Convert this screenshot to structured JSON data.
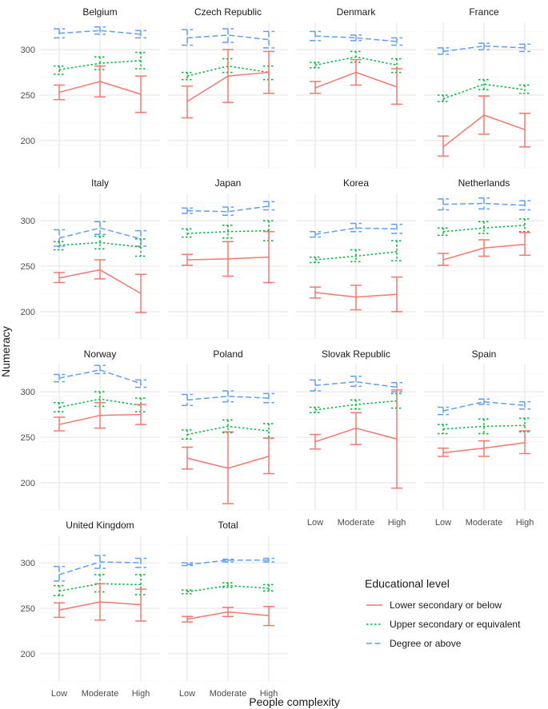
{
  "chart_data": {
    "type": "line",
    "subtype": "faceted line plot with error bars",
    "xlabel": "People complexity",
    "ylabel": "Numeracy",
    "categories": [
      "Low",
      "Moderate",
      "High"
    ],
    "ylim": [
      170,
      330
    ],
    "yticks": [
      200,
      250,
      300
    ],
    "legend": {
      "title": "Educational level",
      "placement": "bottom-right",
      "entries": [
        {
          "key": "lower",
          "label": "Lower secondary or below",
          "color": "#F8766D",
          "dash": "solid"
        },
        {
          "key": "upper",
          "label": "Upper secondary or equivalent",
          "color": "#00BA38",
          "dash": "dotted"
        },
        {
          "key": "degree",
          "label": "Degree or above",
          "color": "#619CFF",
          "dash": "dashed"
        }
      ]
    },
    "panels": [
      {
        "title": "Belgium",
        "series": {
          "lower": {
            "values": [
              253,
              265,
              251
            ],
            "lo": [
              245,
              248,
              231
            ],
            "hi": [
              261,
              282,
              271
            ]
          },
          "upper": {
            "values": [
              278,
              285,
              288
            ],
            "lo": [
              273,
              278,
              279
            ],
            "hi": [
              282,
              292,
              297
            ]
          },
          "degree": {
            "values": [
              318,
              321,
              317
            ],
            "lo": [
              313,
              317,
              313
            ],
            "hi": [
              323,
              325,
              321
            ]
          }
        }
      },
      {
        "title": "Czech Republic",
        "series": {
          "lower": {
            "values": [
              243,
              271,
              275
            ],
            "lo": [
              225,
              242,
              252
            ],
            "hi": [
              260,
              300,
              298
            ]
          },
          "upper": {
            "values": [
              271,
              282,
              275
            ],
            "lo": [
              267,
              275,
              267
            ],
            "hi": [
              275,
              290,
              282
            ]
          },
          "degree": {
            "values": [
              313,
              316,
              311
            ],
            "lo": [
              305,
              308,
              302
            ],
            "hi": [
              322,
              323,
              320
            ]
          }
        }
      },
      {
        "title": "Denmark",
        "series": {
          "lower": {
            "values": [
              258,
              275,
              259
            ],
            "lo": [
              252,
              261,
              240
            ],
            "hi": [
              265,
              289,
              279
            ]
          },
          "upper": {
            "values": [
              283,
              292,
              283
            ],
            "lo": [
              280,
              286,
              275
            ],
            "hi": [
              286,
              298,
              290
            ]
          },
          "degree": {
            "values": [
              315,
              313,
              309
            ],
            "lo": [
              310,
              310,
              305
            ],
            "hi": [
              320,
              316,
              313
            ]
          }
        }
      },
      {
        "title": "France",
        "series": {
          "lower": {
            "values": [
              193,
              228,
              212
            ],
            "lo": [
              183,
              207,
              193
            ],
            "hi": [
              205,
              249,
              230
            ]
          },
          "upper": {
            "values": [
              246,
              262,
              256
            ],
            "lo": [
              243,
              256,
              252
            ],
            "hi": [
              250,
              267,
              261
            ]
          },
          "degree": {
            "values": [
              298,
              304,
              302
            ],
            "lo": [
              295,
              300,
              298
            ],
            "hi": [
              302,
              307,
              306
            ]
          }
        }
      },
      {
        "title": "Italy",
        "series": {
          "lower": {
            "values": [
              237,
              246,
              220
            ],
            "lo": [
              232,
              236,
              199
            ],
            "hi": [
              243,
              257,
              241
            ]
          },
          "upper": {
            "values": [
              273,
              276,
              271
            ],
            "lo": [
              268,
              269,
              261
            ],
            "hi": [
              277,
              283,
              280
            ]
          },
          "degree": {
            "values": [
              281,
              292,
              280
            ],
            "lo": [
              272,
              285,
              272
            ],
            "hi": [
              290,
              299,
              289
            ]
          }
        }
      },
      {
        "title": "Japan",
        "series": {
          "lower": {
            "values": [
              257,
              258,
              260
            ],
            "lo": [
              251,
              239,
              232
            ],
            "hi": [
              263,
              277,
              288
            ]
          },
          "upper": {
            "values": [
              286,
              288,
              289
            ],
            "lo": [
              282,
              281,
              278
            ],
            "hi": [
              291,
              295,
              300
            ]
          },
          "degree": {
            "values": [
              311,
              310,
              316
            ],
            "lo": [
              308,
              306,
              312
            ],
            "hi": [
              314,
              315,
              321
            ]
          }
        }
      },
      {
        "title": "Korea",
        "series": {
          "lower": {
            "values": [
              221,
              216,
              219
            ],
            "lo": [
              215,
              202,
              200
            ],
            "hi": [
              227,
              229,
              238
            ]
          },
          "upper": {
            "values": [
              257,
              261,
              266
            ],
            "lo": [
              254,
              255,
              256
            ],
            "hi": [
              260,
              268,
              278
            ]
          },
          "degree": {
            "values": [
              285,
              292,
              291
            ],
            "lo": [
              282,
              288,
              286
            ],
            "hi": [
              288,
              297,
              296
            ]
          }
        }
      },
      {
        "title": "Netherlands",
        "series": {
          "lower": {
            "values": [
              257,
              270,
              274
            ],
            "lo": [
              251,
              261,
              262
            ],
            "hi": [
              264,
              279,
              287
            ]
          },
          "upper": {
            "values": [
              288,
              292,
              295
            ],
            "lo": [
              284,
              286,
              288
            ],
            "hi": [
              292,
              299,
              302
            ]
          },
          "degree": {
            "values": [
              318,
              319,
              317
            ],
            "lo": [
              312,
              313,
              312
            ],
            "hi": [
              324,
              325,
              322
            ]
          }
        }
      },
      {
        "title": "Norway",
        "series": {
          "lower": {
            "values": [
              264,
              274,
              275
            ],
            "lo": [
              257,
              260,
              264
            ],
            "hi": [
              272,
              288,
              286
            ]
          },
          "upper": {
            "values": [
              283,
              292,
              285
            ],
            "lo": [
              278,
              284,
              278
            ],
            "hi": [
              288,
              300,
              293
            ]
          },
          "degree": {
            "values": [
              315,
              324,
              309
            ],
            "lo": [
              311,
              320,
              305
            ],
            "hi": [
              319,
              329,
              313
            ]
          }
        }
      },
      {
        "title": "Poland",
        "series": {
          "lower": {
            "values": [
              227,
              216,
              229
            ],
            "lo": [
              215,
              177,
              210
            ],
            "hi": [
              239,
              256,
              249
            ]
          },
          "upper": {
            "values": [
              253,
              262,
              257
            ],
            "lo": [
              248,
              255,
              249
            ],
            "hi": [
              258,
              269,
              265
            ]
          },
          "degree": {
            "values": [
              291,
              295,
              293
            ],
            "lo": [
              285,
              289,
              288
            ],
            "hi": [
              297,
              301,
              298
            ]
          }
        }
      },
      {
        "title": "Slovak Republic",
        "series": {
          "lower": {
            "values": [
              245,
              260,
              248
            ],
            "lo": [
              237,
              242,
              194
            ],
            "hi": [
              253,
              277,
              302
            ]
          },
          "upper": {
            "values": [
              280,
              286,
              290
            ],
            "lo": [
              277,
              281,
              282
            ],
            "hi": [
              283,
              291,
              298
            ]
          },
          "degree": {
            "values": [
              307,
              311,
              305
            ],
            "lo": [
              301,
              306,
              300
            ],
            "hi": [
              313,
              317,
              310
            ]
          }
        }
      },
      {
        "title": "Spain",
        "series": {
          "lower": {
            "values": [
              233,
              238,
              244
            ],
            "lo": [
              229,
              229,
              232
            ],
            "hi": [
              238,
              246,
              257
            ]
          },
          "upper": {
            "values": [
              259,
              262,
              263
            ],
            "lo": [
              254,
              254,
              256
            ],
            "hi": [
              264,
              270,
              271
            ]
          },
          "degree": {
            "values": [
              279,
              289,
              285
            ],
            "lo": [
              275,
              286,
              281
            ],
            "hi": [
              283,
              292,
              289
            ]
          }
        }
      },
      {
        "title": "United Kingdom",
        "series": {
          "lower": {
            "values": [
              248,
              257,
              254
            ],
            "lo": [
              240,
              237,
              236
            ],
            "hi": [
              256,
              277,
              271
            ]
          },
          "upper": {
            "values": [
              269,
              277,
              276
            ],
            "lo": [
              264,
              268,
              265
            ],
            "hi": [
              275,
              287,
              287
            ]
          },
          "degree": {
            "values": [
              287,
              301,
              300
            ],
            "lo": [
              280,
              294,
              295
            ],
            "hi": [
              296,
              308,
              305
            ]
          }
        }
      },
      {
        "title": "Total",
        "series": {
          "lower": {
            "values": [
              238,
              246,
              242
            ],
            "lo": [
              235,
              241,
              231
            ],
            "hi": [
              241,
              251,
              252
            ]
          },
          "upper": {
            "values": [
              268,
              275,
              272
            ],
            "lo": [
              266,
              273,
              269
            ],
            "hi": [
              270,
              278,
              276
            ]
          },
          "degree": {
            "values": [
              298,
              303,
              303
            ],
            "lo": [
              297,
              301,
              301
            ],
            "hi": [
              300,
              304,
              305
            ]
          }
        }
      }
    ]
  }
}
